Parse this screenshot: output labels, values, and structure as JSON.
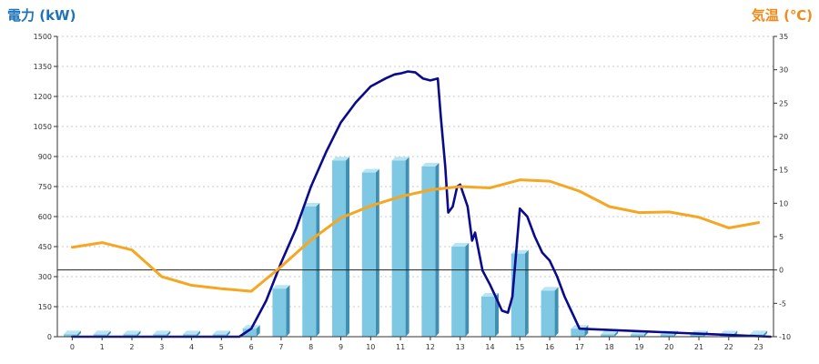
{
  "chart_data": {
    "type": "bar",
    "title": "",
    "xlabel": "",
    "ylabel": "電力 (kW)",
    "y2label": "気温 (℃)",
    "categories": [
      "0",
      "1",
      "2",
      "3",
      "4",
      "5",
      "6",
      "7",
      "8",
      "9",
      "10",
      "11",
      "12",
      "13",
      "14",
      "15",
      "16",
      "17",
      "18",
      "19",
      "20",
      "21",
      "22",
      "23"
    ],
    "ylim": [
      0,
      1500
    ],
    "yticks": [
      0,
      150,
      300,
      450,
      600,
      750,
      900,
      1050,
      1200,
      1350,
      1500
    ],
    "y2lim": [
      -10,
      35
    ],
    "y2ticks": [
      -10,
      -5,
      0,
      5,
      10,
      15,
      20,
      25,
      30,
      35
    ],
    "grid": true,
    "series": [
      {
        "kind": "bar",
        "axis": "left",
        "color": "#7ec8e3",
        "values": [
          12,
          12,
          12,
          12,
          12,
          12,
          40,
          240,
          650,
          880,
          820,
          880,
          850,
          450,
          200,
          415,
          230,
          40,
          12,
          12,
          12,
          12,
          12,
          12
        ]
      },
      {
        "kind": "line",
        "axis": "left",
        "color": "#0a0a8c",
        "x": [
          0,
          5.6,
          6.0,
          6.5,
          7.0,
          7.5,
          8.0,
          8.5,
          9.0,
          9.5,
          10.0,
          10.5,
          10.8,
          11.0,
          11.25,
          11.5,
          11.75,
          12.0,
          12.25,
          12.35,
          12.5,
          12.6,
          12.75,
          12.9,
          13.0,
          13.25,
          13.4,
          13.5,
          13.75,
          14.0,
          14.25,
          14.4,
          14.6,
          14.75,
          15.0,
          15.25,
          15.5,
          15.75,
          16.0,
          16.25,
          16.5,
          16.75,
          17.0,
          23.4
        ],
        "y": [
          0,
          0,
          40,
          180,
          370,
          540,
          750,
          920,
          1070,
          1170,
          1250,
          1290,
          1310,
          1315,
          1325,
          1320,
          1290,
          1280,
          1290,
          1100,
          850,
          620,
          650,
          750,
          760,
          650,
          480,
          520,
          330,
          260,
          180,
          130,
          120,
          200,
          640,
          600,
          500,
          420,
          380,
          300,
          200,
          120,
          40,
          0
        ]
      },
      {
        "kind": "line",
        "axis": "right",
        "color": "#f5a623",
        "x": [
          0,
          1,
          2,
          3,
          4,
          5,
          6,
          7,
          8,
          9,
          10,
          11,
          12,
          13,
          14,
          15,
          16,
          17,
          18,
          19,
          20,
          21,
          22,
          23
        ],
        "y": [
          3.4,
          4.1,
          3.0,
          -1.0,
          -2.3,
          -2.8,
          -3.2,
          0.5,
          4.5,
          7.8,
          9.6,
          11.0,
          12.0,
          12.5,
          12.3,
          13.5,
          13.3,
          11.8,
          9.5,
          8.6,
          8.7,
          7.9,
          6.3,
          7.1
        ]
      }
    ]
  }
}
